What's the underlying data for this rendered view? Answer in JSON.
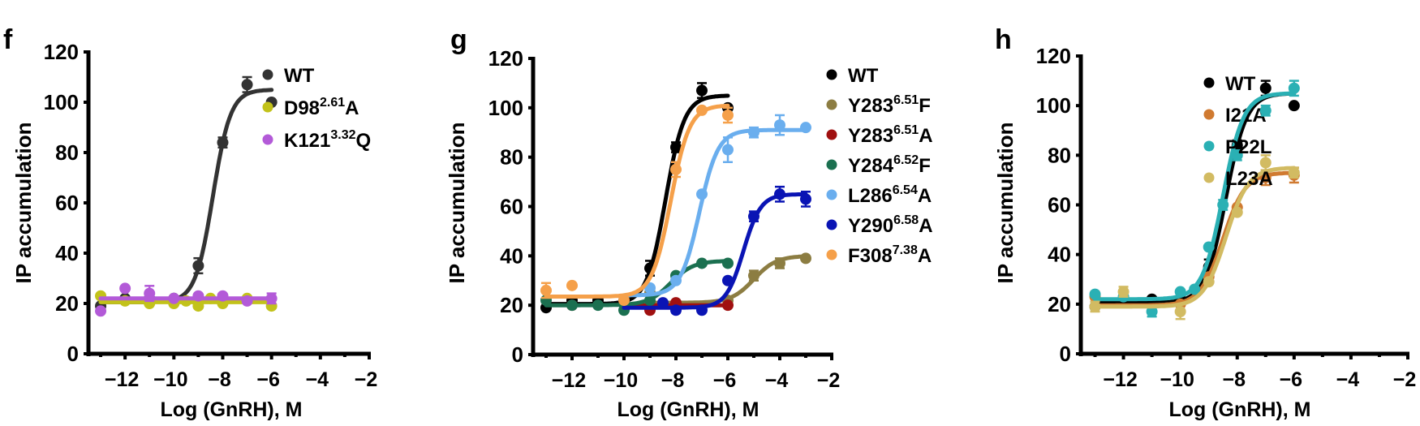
{
  "chart_data": [
    {
      "type": "line",
      "panel_label": "f",
      "title": "",
      "xlabel": "Log (GnRH), M",
      "ylabel": "IP accumulation",
      "xlim": [
        -13.5,
        -2
      ],
      "ylim": [
        0,
        120
      ],
      "xticks": [
        -12,
        -10,
        -8,
        -6,
        -4,
        -2
      ],
      "xtick_labels": [
        "−12",
        "−10",
        "−8",
        "−6",
        "−4",
        "−2"
      ],
      "yticks": [
        0,
        20,
        40,
        60,
        80,
        100,
        120
      ],
      "ytick_labels": [
        "0",
        "20",
        "40",
        "60",
        "80",
        "100",
        "120"
      ],
      "grid": false,
      "legend_position": "top-right",
      "series": [
        {
          "name": "WT",
          "base": "WT",
          "sup": "",
          "suffix": "",
          "color": "#333333",
          "x": [
            -13,
            -12,
            -11,
            -10,
            -9,
            -8,
            -7,
            -6
          ],
          "y": [
            19,
            22,
            22,
            22,
            35,
            84,
            107,
            100
          ],
          "err": [
            0,
            0,
            0,
            0,
            3,
            2,
            3,
            0
          ],
          "fit": {
            "bottom": 20.5,
            "top": 105,
            "logEC50": -8.4,
            "hill": 1.2,
            "xmin": -13,
            "xmax": -6
          }
        },
        {
          "name": "D98(2.61)A",
          "base": "D98",
          "sup": "2.61",
          "suffix": "A",
          "color": "#c2c21a",
          "x": [
            -13,
            -12,
            -11,
            -10,
            -9.5,
            -9,
            -8.5,
            -8,
            -7,
            -6
          ],
          "y": [
            23,
            21,
            20,
            20,
            21,
            19,
            22,
            20,
            22,
            19
          ],
          "err": [
            0,
            0,
            0,
            0,
            0,
            0,
            0,
            0,
            0,
            0
          ],
          "fit": {
            "bottom": 20.5,
            "top": 20.5,
            "logEC50": -9,
            "hill": 1,
            "xmin": -13,
            "xmax": -6
          }
        },
        {
          "name": "K121(3.32)Q",
          "base": "K121",
          "sup": "3.32",
          "suffix": "Q",
          "color": "#b35ad8",
          "x": [
            -13,
            -12,
            -11,
            -10,
            -9,
            -8,
            -7,
            -6
          ],
          "y": [
            17,
            26,
            24,
            22,
            23,
            23,
            21,
            22
          ],
          "err": [
            0,
            0,
            3,
            0,
            0,
            0,
            0,
            2
          ],
          "fit": {
            "bottom": 22,
            "top": 22,
            "logEC50": -9,
            "hill": 1,
            "xmin": -13,
            "xmax": -6
          }
        }
      ]
    },
    {
      "type": "line",
      "panel_label": "g",
      "title": "",
      "xlabel": "Log (GnRH), M",
      "ylabel": "IP accumulation",
      "xlim": [
        -13.5,
        -2
      ],
      "ylim": [
        0,
        120
      ],
      "xticks": [
        -12,
        -10,
        -8,
        -6,
        -4,
        -2
      ],
      "xtick_labels": [
        "−12",
        "−10",
        "−8",
        "−6",
        "−4",
        "−2"
      ],
      "yticks": [
        0,
        20,
        40,
        60,
        80,
        100,
        120
      ],
      "ytick_labels": [
        "0",
        "20",
        "40",
        "60",
        "80",
        "100",
        "120"
      ],
      "grid": false,
      "legend_position": "top-right",
      "series": [
        {
          "name": "WT",
          "base": "WT",
          "sup": "",
          "suffix": "",
          "color": "#000000",
          "x": [
            -13,
            -12,
            -11,
            -10,
            -9,
            -8,
            -7,
            -6
          ],
          "y": [
            19,
            22,
            22,
            22,
            35,
            84,
            107,
            100
          ],
          "err": [
            0,
            0,
            0,
            0,
            3,
            2,
            3,
            0
          ],
          "fit": {
            "bottom": 20.5,
            "top": 105,
            "logEC50": -8.4,
            "hill": 1.2,
            "xmin": -13,
            "xmax": -6
          }
        },
        {
          "name": "Y283(6.51)F",
          "base": "Y283",
          "sup": "6.51",
          "suffix": "F",
          "color": "#8c7d42",
          "x": [
            -9,
            -6,
            -5,
            -4,
            -3
          ],
          "y": [
            25,
            22,
            32,
            37,
            39
          ],
          "err": [
            0,
            0,
            2,
            2,
            0
          ],
          "fit": {
            "bottom": 21,
            "top": 40,
            "logEC50": -5.0,
            "hill": 1.0,
            "xmin": -9,
            "xmax": -3
          }
        },
        {
          "name": "Y283(6.51)A",
          "base": "Y283",
          "sup": "6.51",
          "suffix": "A",
          "color": "#a01010",
          "x": [
            -12,
            -9,
            -8,
            -6
          ],
          "y": [
            20,
            18,
            21,
            20
          ],
          "err": [
            0,
            0,
            0,
            0
          ],
          "fit": {
            "bottom": 20,
            "top": 20,
            "logEC50": -8,
            "hill": 1,
            "xmin": -10,
            "xmax": -6
          }
        },
        {
          "name": "Y284(6.52)F",
          "base": "Y284",
          "sup": "6.52",
          "suffix": "F",
          "color": "#1b7050",
          "x": [
            -13,
            -12,
            -11,
            -10,
            -9,
            -8,
            -7,
            -6
          ],
          "y": [
            22,
            20,
            20,
            18,
            22,
            32,
            37,
            37
          ],
          "err": [
            0,
            0,
            0,
            0,
            0,
            0,
            0,
            0
          ],
          "fit": {
            "bottom": 20,
            "top": 38,
            "logEC50": -8.2,
            "hill": 1.0,
            "xmin": -13,
            "xmax": -6
          }
        },
        {
          "name": "L286(6.54)A",
          "base": "L286",
          "sup": "6.54",
          "suffix": "A",
          "color": "#6aaeee",
          "x": [
            -9,
            -8,
            -7,
            -6,
            -5,
            -4,
            -3
          ],
          "y": [
            27,
            30,
            65,
            83,
            90,
            93,
            92
          ],
          "err": [
            0,
            0,
            0,
            5,
            2,
            4,
            0
          ],
          "fit": {
            "bottom": 24,
            "top": 91,
            "logEC50": -7.1,
            "hill": 1.2,
            "xmin": -10,
            "xmax": -3
          }
        },
        {
          "name": "Y290(6.58)A",
          "base": "Y290",
          "sup": "6.58",
          "suffix": "A",
          "color": "#0a14b4",
          "x": [
            -8.5,
            -8,
            -7,
            -6,
            -5,
            -4,
            -3
          ],
          "y": [
            21,
            18,
            18,
            30,
            56,
            65,
            63
          ],
          "err": [
            0,
            1,
            0,
            0,
            2,
            3,
            3
          ],
          "fit": {
            "bottom": 19,
            "top": 65,
            "logEC50": -5.4,
            "hill": 1.3,
            "xmin": -10,
            "xmax": -3
          }
        },
        {
          "name": "F308(7.38)A",
          "base": "F308",
          "sup": "7.38",
          "suffix": "A",
          "color": "#f5a04a",
          "x": [
            -13,
            -12,
            -10,
            -8,
            -7,
            -6
          ],
          "y": [
            26,
            28,
            22,
            75,
            99,
            97
          ],
          "err": [
            3,
            0,
            0,
            3,
            0,
            3
          ],
          "fit": {
            "bottom": 23.5,
            "top": 101,
            "logEC50": -8.2,
            "hill": 1.2,
            "xmin": -13,
            "xmax": -6
          }
        }
      ]
    },
    {
      "type": "line",
      "panel_label": "h",
      "title": "",
      "xlabel": "Log (GnRH), M",
      "ylabel": "IP accumulation",
      "xlim": [
        -13.5,
        -2
      ],
      "ylim": [
        0,
        120
      ],
      "xticks": [
        -12,
        -10,
        -8,
        -6,
        -4,
        -2
      ],
      "xtick_labels": [
        "−12",
        "−10",
        "−8",
        "−6",
        "−4",
        "−2"
      ],
      "yticks": [
        0,
        20,
        40,
        60,
        80,
        100,
        120
      ],
      "ytick_labels": [
        "0",
        "20",
        "40",
        "60",
        "80",
        "100",
        "120"
      ],
      "grid": false,
      "legend_position": "top-right",
      "series": [
        {
          "name": "WT",
          "base": "WT",
          "sup": "",
          "suffix": "",
          "color": "#000000",
          "x": [
            -13,
            -12,
            -11,
            -10,
            -9,
            -8,
            -7,
            -6
          ],
          "y": [
            19,
            22,
            22,
            22,
            35,
            84,
            107,
            100
          ],
          "err": [
            0,
            0,
            0,
            0,
            3,
            2,
            3,
            0
          ],
          "fit": {
            "bottom": 20.5,
            "top": 105,
            "logEC50": -8.4,
            "hill": 1.2,
            "xmin": -13,
            "xmax": -6
          }
        },
        {
          "name": "I21A",
          "base": "I21A",
          "sup": "",
          "suffix": "",
          "color": "#d07a30",
          "x": [
            -13,
            -10,
            -9,
            -8,
            -7,
            -6
          ],
          "y": [
            23,
            20,
            31,
            59,
            71,
            72
          ],
          "err": [
            2,
            0,
            0,
            0,
            3,
            3
          ],
          "fit": {
            "bottom": 19.5,
            "top": 73,
            "logEC50": -8.5,
            "hill": 1.1,
            "xmin": -13,
            "xmax": -6
          }
        },
        {
          "name": "P22L",
          "base": "P22L",
          "sup": "",
          "suffix": "",
          "color": "#2ab0b4",
          "x": [
            -13,
            -12,
            -11,
            -10,
            -9.5,
            -9,
            -8.5,
            -8,
            -7,
            -6
          ],
          "y": [
            24,
            23,
            17,
            25,
            26,
            43,
            60,
            80,
            98,
            107
          ],
          "err": [
            0,
            0,
            2,
            0,
            0,
            0,
            2,
            2,
            2,
            3
          ],
          "fit": {
            "bottom": 22,
            "top": 105,
            "logEC50": -8.5,
            "hill": 1.2,
            "xmin": -13,
            "xmax": -6
          }
        },
        {
          "name": "L23A",
          "base": "L23A",
          "sup": "",
          "suffix": "",
          "color": "#d2bb62",
          "x": [
            -13,
            -12,
            -10,
            -9,
            -8,
            -7,
            -6
          ],
          "y": [
            19,
            25,
            17,
            29,
            57,
            77,
            73
          ],
          "err": [
            2,
            2,
            3,
            0,
            0,
            3,
            2
          ],
          "fit": {
            "bottom": 19,
            "top": 75,
            "logEC50": -8.4,
            "hill": 1.1,
            "xmin": -13,
            "xmax": -6
          }
        }
      ]
    }
  ]
}
